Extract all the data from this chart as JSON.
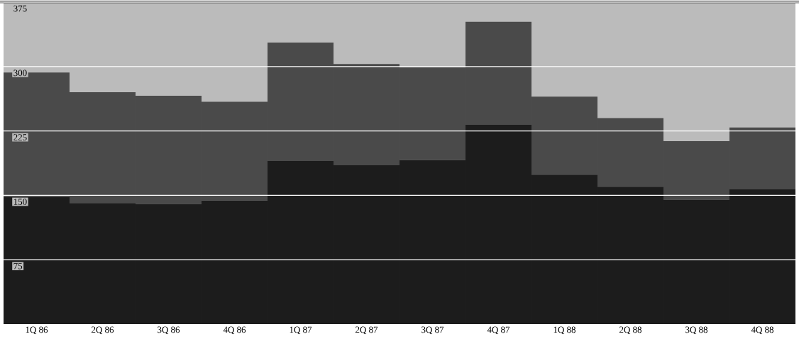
{
  "chart_data": {
    "type": "bar",
    "stacked": true,
    "categories": [
      "1Q 86",
      "2Q 86",
      "3Q 86",
      "4Q 86",
      "1Q 87",
      "2Q 87",
      "3Q 87",
      "4Q 87",
      "1Q 88",
      "2Q 88",
      "3Q 88",
      "4Q 88"
    ],
    "series": [
      {
        "color": "#1c1c1c",
        "values": [
          148,
          141,
          140,
          144,
          190,
          185,
          191,
          232,
          174,
          160,
          145,
          157
        ]
      },
      {
        "color": "#4a4a4a",
        "values": [
          145,
          129,
          126,
          115,
          138,
          118,
          108,
          120,
          91,
          80,
          68,
          72
        ]
      }
    ],
    "ylim": [
      0,
      375
    ],
    "yticks": [
      75,
      150,
      225,
      300,
      375
    ],
    "grid": "y"
  }
}
